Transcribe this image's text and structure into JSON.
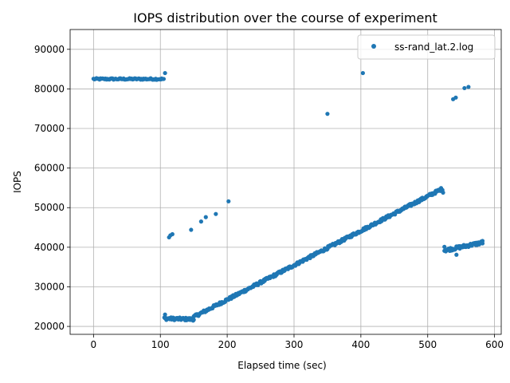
{
  "chart_data": {
    "type": "scatter",
    "title": "IOPS distribution over the course of experiment",
    "xlabel": "Elapsed time (sec)",
    "ylabel": "IOPS",
    "xlim": [
      -35,
      610
    ],
    "ylim": [
      18000,
      95000
    ],
    "xticks": [
      0,
      100,
      200,
      300,
      400,
      500,
      600
    ],
    "yticks": [
      20000,
      30000,
      40000,
      50000,
      60000,
      70000,
      80000,
      90000
    ],
    "xtick_labels": [
      "0",
      "100",
      "200",
      "300",
      "400",
      "500",
      "600"
    ],
    "ytick_labels": [
      "20000",
      "30000",
      "40000",
      "50000",
      "60000",
      "70000",
      "80000",
      "90000"
    ],
    "grid": true,
    "legend_position": "top-right",
    "series": [
      {
        "name": "ss-rand_lat.2.log",
        "color": "#1f77b4",
        "segments": [
          {
            "x_start": 0,
            "x_end": 106,
            "y_start": 82500,
            "y_end": 82500,
            "step": 1.5,
            "jitter": 200
          },
          {
            "x_start": 106,
            "x_end": 150,
            "y_start": 22000,
            "y_end": 21800,
            "step": 1,
            "jitter": 350
          },
          {
            "x_start": 150,
            "x_end": 522,
            "y_start": 22400,
            "y_end": 54800,
            "step": 1,
            "jitter": 350
          },
          {
            "x_start": 525,
            "x_end": 582,
            "y_start": 39200,
            "y_end": 41200,
            "step": 1,
            "jitter": 400
          }
        ],
        "points": [
          [
            107,
            84000
          ],
          [
            107,
            23000
          ],
          [
            113,
            42500
          ],
          [
            115,
            43000
          ],
          [
            118,
            43300
          ],
          [
            146,
            44400
          ],
          [
            161,
            46500
          ],
          [
            168,
            47600
          ],
          [
            183,
            48400
          ],
          [
            202,
            51600
          ],
          [
            350,
            73700
          ],
          [
            403,
            84000
          ],
          [
            523,
            53800
          ],
          [
            525,
            40100
          ],
          [
            538,
            77400
          ],
          [
            542,
            77800
          ],
          [
            555,
            80200
          ],
          [
            561,
            80500
          ],
          [
            543,
            38100
          ],
          [
            582,
            41600
          ]
        ]
      }
    ]
  }
}
